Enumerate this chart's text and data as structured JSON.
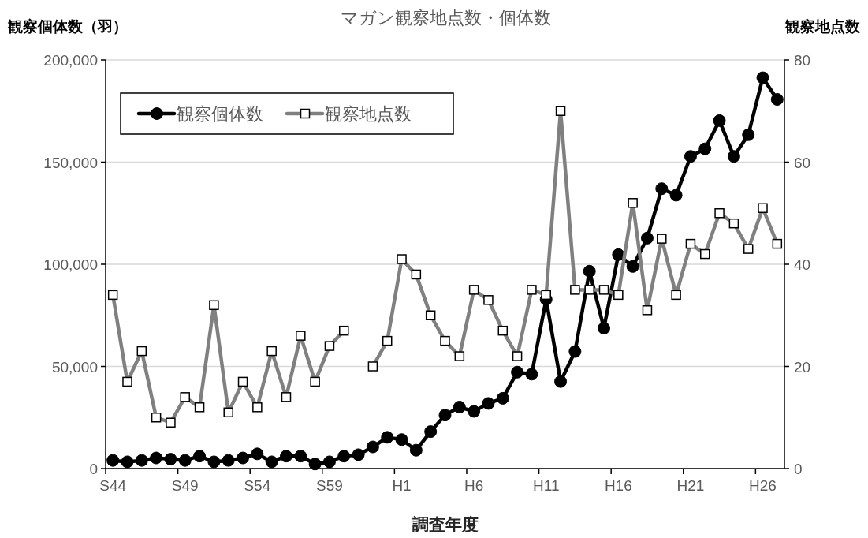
{
  "chart_data": {
    "type": "line",
    "title": "マガン観察地点数・個体数",
    "xlabel": "調査年度",
    "ylabel": "観察個体数（羽）",
    "y2label": "観察地点数",
    "categories": [
      "S44",
      null,
      null,
      null,
      null,
      "S49",
      null,
      null,
      null,
      null,
      "S54",
      null,
      null,
      null,
      null,
      "S59",
      null,
      null,
      null,
      null,
      "H1",
      null,
      null,
      null,
      null,
      "H6",
      null,
      null,
      null,
      null,
      "H11",
      null,
      null,
      null,
      null,
      "H16",
      null,
      null,
      null,
      null,
      "H21",
      null,
      null,
      null,
      null,
      "H26",
      null
    ],
    "series": [
      {
        "name": "観察個体数",
        "color": "#000000",
        "marker": "circle",
        "axis": "y",
        "values": [
          4000,
          3300,
          4000,
          5200,
          4600,
          4000,
          6100,
          3300,
          4000,
          5200,
          7200,
          3300,
          6100,
          6100,
          2200,
          3300,
          6100,
          6800,
          10600,
          15300,
          14200,
          9000,
          18100,
          26200,
          30100,
          28000,
          31900,
          34400,
          47200,
          46200,
          82800,
          42600,
          57300,
          96600,
          68700,
          104700,
          98900,
          112800,
          137000,
          133800,
          152800,
          156500,
          170300,
          152800,
          163400,
          191300,
          180700
        ]
      },
      {
        "name": "観察地点数",
        "color": "#808080",
        "marker": "square",
        "axis": "y2",
        "values": [
          34,
          17,
          23,
          10,
          9,
          14,
          12,
          32,
          11,
          17,
          12,
          23,
          14,
          26,
          17,
          24,
          27,
          null,
          20,
          25,
          41,
          38,
          30,
          25,
          22,
          35,
          33,
          27,
          22,
          35,
          34,
          70,
          35,
          35,
          35,
          34,
          52,
          31,
          45,
          34,
          44,
          42,
          50,
          48,
          43,
          51,
          44
        ]
      }
    ],
    "ylim": [
      0,
      200000
    ],
    "yticks": [
      {
        "value": 0,
        "label": "0"
      },
      {
        "value": 50000,
        "label": "50,000"
      },
      {
        "value": 100000,
        "label": "100,000"
      },
      {
        "value": 150000,
        "label": "150,000"
      },
      {
        "value": 200000,
        "label": "200,000"
      }
    ],
    "y2lim": [
      0,
      80
    ],
    "y2ticks": [
      0,
      20,
      40,
      60,
      80
    ],
    "grid": "y",
    "legend": "top left"
  }
}
